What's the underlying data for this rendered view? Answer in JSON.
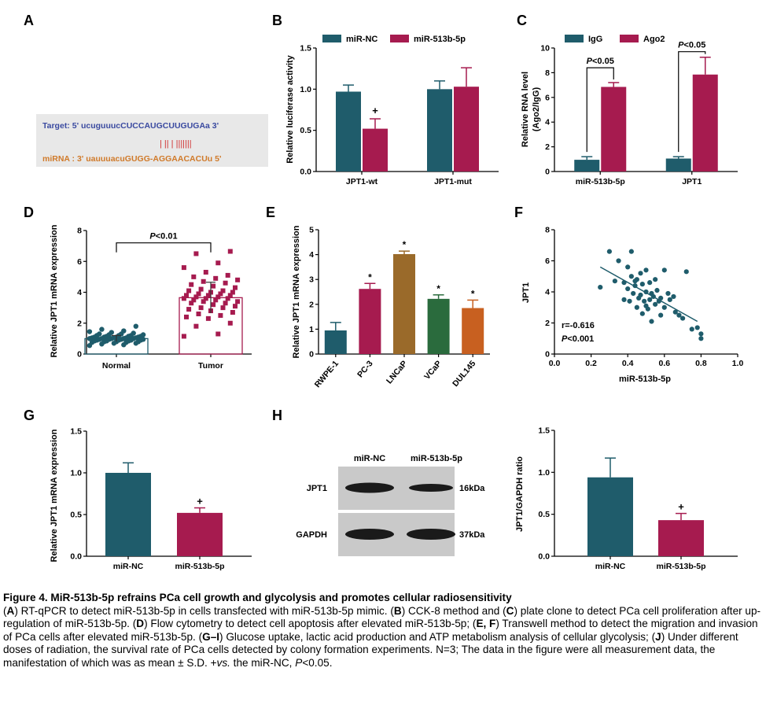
{
  "colors": {
    "teal": "#1f5c6b",
    "crimson": "#a61b4f",
    "brown": "#9a6a2a",
    "green": "#2a6b3d",
    "orange": "#c86020",
    "blot_band": "#1a1a1a",
    "blot_bg": "#c9c9c9",
    "seq_bg": "#e8e8e8",
    "target_color": "#3a4aa0",
    "mirna_color": "#d07a2a"
  },
  "panel_labels": [
    "A",
    "B",
    "C",
    "D",
    "E",
    "F",
    "G",
    "H"
  ],
  "panel_a": {
    "target_line": "Target: 5' ucuguuucCUCCAUGCUUGUGAa 3'",
    "pair_line": "| || | |||||||",
    "mirna_line": "miRNA : 3' uauuuacuGUGG-AGGAACACUu 5'"
  },
  "chart_data": [
    {
      "panel": "B",
      "type": "bar",
      "ylabel": "Relative luciferase activity",
      "categories": [
        "JPT1-wt",
        "JPT1-mut"
      ],
      "ylim": [
        0,
        1.5
      ],
      "yticks": [
        "0.0",
        "0.5",
        "1.0",
        "1.5"
      ],
      "legend_placement": "top",
      "series": [
        {
          "name": "miR-NC",
          "color": "#1f5c6b",
          "values": [
            0.97,
            1.0
          ],
          "errors": [
            0.08,
            0.1
          ]
        },
        {
          "name": "miR-513b-5p",
          "color": "#a61b4f",
          "values": [
            0.52,
            1.03
          ],
          "errors": [
            0.12,
            0.23
          ]
        }
      ],
      "annotations": [
        {
          "category": 0,
          "series": 1,
          "text": "+"
        }
      ]
    },
    {
      "panel": "C",
      "type": "bar",
      "ylabel": "Relative RNA level (Ago2/IgG)",
      "ylabel_lines": [
        "Relative RNA level",
        "(Ago2/IgG)"
      ],
      "categories": [
        "miR-513b-5p",
        "JPT1"
      ],
      "ylim": [
        0,
        10
      ],
      "yticks": [
        "0",
        "2",
        "4",
        "6",
        "8",
        "10"
      ],
      "legend_placement": "top",
      "series": [
        {
          "name": "IgG",
          "color": "#1f5c6b",
          "values": [
            0.95,
            1.05
          ],
          "errors": [
            0.25,
            0.15
          ]
        },
        {
          "name": "Ago2",
          "color": "#a61b4f",
          "values": [
            6.85,
            7.85
          ],
          "errors": [
            0.35,
            1.4
          ]
        }
      ],
      "annotations": [
        {
          "category": 0,
          "text_italic": "P",
          "text": "<0.05"
        },
        {
          "category": 1,
          "text_italic": "P",
          "text": "<0.05"
        }
      ]
    },
    {
      "panel": "D",
      "type": "scatter",
      "ylabel": "Relative JPT1 mRNA expression",
      "categories": [
        "Normal",
        "Tumor"
      ],
      "ylim": [
        0,
        8
      ],
      "yticks": [
        "0",
        "2",
        "4",
        "6",
        "8"
      ],
      "means": [
        1.0,
        3.65
      ],
      "sd": [
        0.2,
        1.0
      ],
      "groups": [
        {
          "name": "Normal",
          "color": "#1f5c6b",
          "values": [
            0.55,
            0.6,
            0.65,
            0.7,
            0.7,
            0.75,
            0.75,
            0.8,
            0.8,
            0.8,
            0.85,
            0.85,
            0.85,
            0.9,
            0.9,
            0.9,
            0.9,
            0.95,
            0.95,
            0.95,
            0.95,
            1.0,
            1.0,
            1.0,
            1.0,
            1.0,
            1.05,
            1.05,
            1.05,
            1.05,
            1.1,
            1.1,
            1.1,
            1.1,
            1.15,
            1.15,
            1.15,
            1.2,
            1.2,
            1.2,
            1.25,
            1.25,
            1.3,
            1.3,
            1.35,
            1.4,
            1.45,
            1.5,
            1.6,
            1.8
          ]
        },
        {
          "name": "Tumor",
          "color": "#a61b4f",
          "values": [
            1.15,
            1.3,
            1.8,
            2.0,
            2.3,
            2.4,
            2.5,
            2.6,
            2.7,
            2.8,
            2.9,
            3.0,
            3.0,
            3.1,
            3.2,
            3.3,
            3.3,
            3.4,
            3.4,
            3.5,
            3.5,
            3.6,
            3.6,
            3.6,
            3.7,
            3.7,
            3.8,
            3.8,
            3.8,
            3.9,
            3.9,
            4.0,
            4.0,
            4.1,
            4.1,
            4.2,
            4.3,
            4.4,
            4.5,
            4.6,
            4.7,
            4.8,
            4.9,
            5.0,
            5.1,
            5.3,
            5.6,
            5.9,
            6.5,
            6.65
          ]
        }
      ],
      "annotations": [
        {
          "text_italic": "P",
          "text": "<0.01"
        }
      ]
    },
    {
      "panel": "E",
      "type": "bar",
      "ylabel": "Relative JPT1 mRNA expression",
      "categories": [
        "RWPE-1",
        "PC-3",
        "LNCaP",
        "VCaP",
        "DUL145"
      ],
      "ylim": [
        0,
        5
      ],
      "yticks": [
        "0",
        "1",
        "2",
        "3",
        "4",
        "5"
      ],
      "values": [
        0.95,
        2.62,
        4.02,
        2.22,
        1.85
      ],
      "errors": [
        0.32,
        0.22,
        0.12,
        0.16,
        0.32
      ],
      "colors": [
        "#1f5c6b",
        "#a61b4f",
        "#9a6a2a",
        "#2a6b3d",
        "#c86020"
      ],
      "annotations": [
        "",
        "*",
        "*",
        "*",
        "*"
      ]
    },
    {
      "panel": "F",
      "type": "scatter",
      "xlabel": "miR-513b-5p",
      "ylabel": "JPT1",
      "xlim": [
        0.0,
        1.0
      ],
      "ylim": [
        0,
        8
      ],
      "xticks": [
        "0.0",
        "0.2",
        "0.4",
        "0.6",
        "0.8",
        "1.0"
      ],
      "yticks": [
        "0",
        "2",
        "4",
        "6",
        "8"
      ],
      "stats": {
        "r": "r=-0.616",
        "p_italic": "P",
        "p": "<0.001"
      },
      "fit_line": {
        "x": [
          0.25,
          0.78
        ],
        "y": [
          5.6,
          2.1
        ]
      },
      "points": {
        "x": [
          0.25,
          0.3,
          0.33,
          0.35,
          0.38,
          0.38,
          0.4,
          0.4,
          0.42,
          0.42,
          0.43,
          0.44,
          0.45,
          0.45,
          0.46,
          0.47,
          0.47,
          0.48,
          0.48,
          0.49,
          0.5,
          0.5,
          0.5,
          0.51,
          0.52,
          0.52,
          0.53,
          0.53,
          0.54,
          0.55,
          0.55,
          0.56,
          0.57,
          0.58,
          0.58,
          0.6,
          0.6,
          0.62,
          0.63,
          0.65,
          0.66,
          0.68,
          0.7,
          0.72,
          0.75,
          0.78,
          0.8,
          0.8,
          0.41,
          0.44
        ],
        "y": [
          4.3,
          6.6,
          4.7,
          6.0,
          4.6,
          3.5,
          5.6,
          4.2,
          6.6,
          5.0,
          3.9,
          4.4,
          3.0,
          4.8,
          3.6,
          5.2,
          3.8,
          4.5,
          2.6,
          3.4,
          5.4,
          4.0,
          3.1,
          2.9,
          4.6,
          3.5,
          3.9,
          2.1,
          3.7,
          4.8,
          3.2,
          4.1,
          3.4,
          3.6,
          2.5,
          5.4,
          3.0,
          3.9,
          3.5,
          3.7,
          2.7,
          2.5,
          2.3,
          5.3,
          1.6,
          1.7,
          1.3,
          1.0,
          3.4,
          4.7
        ]
      }
    },
    {
      "panel": "G",
      "type": "bar",
      "ylabel": "Relative JPT1 mRNA expression",
      "categories": [
        "miR-NC",
        "miR-513b-5p"
      ],
      "ylim": [
        0,
        1.5
      ],
      "yticks": [
        "0.0",
        "0.5",
        "1.0",
        "1.5"
      ],
      "values": [
        1.0,
        0.52
      ],
      "errors": [
        0.12,
        0.06
      ],
      "colors": [
        "#1f5c6b",
        "#a61b4f"
      ],
      "annotations": [
        "",
        "+"
      ]
    },
    {
      "panel": "H",
      "type": "bar",
      "ylabel": "JPT1/GAPDH ratio",
      "categories": [
        "miR-NC",
        "miR-513b-5p"
      ],
      "ylim": [
        0,
        1.5
      ],
      "yticks": [
        "0.0",
        "0.5",
        "1.0",
        "1.5"
      ],
      "values": [
        0.94,
        0.43
      ],
      "errors": [
        0.23,
        0.08
      ],
      "colors": [
        "#1f5c6b",
        "#a61b4f"
      ],
      "annotations": [
        "",
        "+"
      ]
    }
  ],
  "blot": {
    "lanes": [
      "miR-NC",
      "miR-513b-5p"
    ],
    "rows": [
      {
        "label": "JPT1",
        "size": "16kDa"
      },
      {
        "label": "GAPDH",
        "size": "37kDa"
      }
    ]
  },
  "caption": {
    "title": "Figure 4. MiR-513b-5p refrains PCa cell growth and glycolysis and promotes cellular radiosensitivity",
    "segments": [
      {
        "t": "("
      },
      {
        "t": "A",
        "b": true
      },
      {
        "t": ") RT-qPCR to detect miR-513b-5p in cells transfected with miR-513b-5p mimic. ("
      },
      {
        "t": "B",
        "b": true
      },
      {
        "t": ") CCK-8 method and ("
      },
      {
        "t": "C",
        "b": true
      },
      {
        "t": ") plate clone to detect PCa cell proliferation after up-regulation of miR-513b-5p. ("
      },
      {
        "t": "D",
        "b": true
      },
      {
        "t": ") Flow cytometry to detect cell apoptosis after elevated miR-513b-5p; ("
      },
      {
        "t": "E, F",
        "b": true
      },
      {
        "t": ") Transwell method to detect the migration and invasion of PCa cells after elevated miR-513b-5p. ("
      },
      {
        "t": "G–I",
        "b": true
      },
      {
        "t": ") Glucose uptake, lactic acid production and ATP metabolism analysis of cellular glycolysis; ("
      },
      {
        "t": "J",
        "b": true
      },
      {
        "t": ") Under different doses of radiation, the survival rate of PCa cells detected by colony formation experiments. N=3; The data in the figure were all measurement data, the manifestation of which was as mean ± S.D. +"
      },
      {
        "t": "vs.",
        "i": true
      },
      {
        "t": " the miR-NC, "
      },
      {
        "t": "P",
        "i": true
      },
      {
        "t": "<0.05."
      }
    ]
  }
}
